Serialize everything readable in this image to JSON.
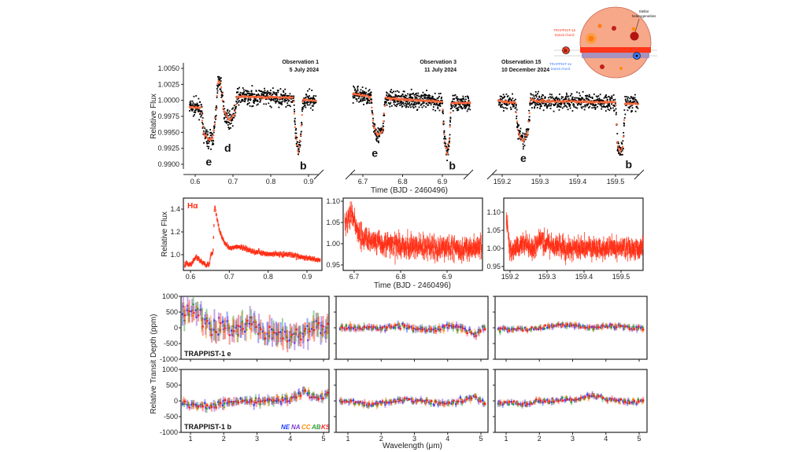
{
  "colors": {
    "model": "#ff6a3d",
    "scatter": "#000000",
    "halpha": "#ff2a10"
  },
  "chart_data": [
    {
      "type": "scatter",
      "id": "white-light-curves",
      "ylabel": "Relative Flux",
      "xlabel": "Time (BJD - 2460496)",
      "yticks": [
        "1.0050",
        "1.0025",
        "1.0000",
        "0.9975",
        "0.9950",
        "0.9925",
        "0.9900"
      ],
      "ylim": [
        0.9895,
        1.0055
      ],
      "panels": [
        {
          "title": "Observation 1",
          "date": "5 July 2024",
          "xticks": [
            "0.6",
            "0.7",
            "0.8",
            "0.9"
          ],
          "xlim": [
            0.585,
            0.92
          ],
          "labels": [
            {
              "text": "e",
              "x": 0.636,
              "y": 0.9904
            },
            {
              "text": "d",
              "x": 0.686,
              "y": 0.9926
            },
            {
              "text": "b",
              "x": 0.886,
              "y": 0.9898
            }
          ],
          "model": [
            [
              0.585,
              0.999
            ],
            [
              0.615,
              0.9988
            ],
            [
              0.622,
              0.995
            ],
            [
              0.635,
              0.9938
            ],
            [
              0.648,
              0.9942
            ],
            [
              0.655,
              0.998
            ],
            [
              0.66,
              1.0032
            ],
            [
              0.668,
              1.0025
            ],
            [
              0.675,
              0.9985
            ],
            [
              0.69,
              0.9968
            ],
            [
              0.705,
              0.998
            ],
            [
              0.71,
              1.0006
            ],
            [
              0.86,
              1.0004
            ],
            [
              0.865,
              0.995
            ],
            [
              0.873,
              0.9915
            ],
            [
              0.88,
              0.995
            ],
            [
              0.885,
              1.0001
            ],
            [
              0.92,
              0.9999
            ]
          ]
        },
        {
          "title": "Observation 3",
          "date": "11 July 2024",
          "xticks": [
            "6.7",
            "6.8",
            "6.9"
          ],
          "xlim": [
            6.675,
            6.97
          ],
          "labels": [
            {
              "text": "e",
              "x": 6.73,
              "y": 0.9918
            },
            {
              "text": "b",
              "x": 6.925,
              "y": 0.9898
            }
          ],
          "model": [
            [
              6.675,
              1.0011
            ],
            [
              6.72,
              1.0005
            ],
            [
              6.727,
              0.996
            ],
            [
              6.737,
              0.9945
            ],
            [
              6.75,
              0.9952
            ],
            [
              6.757,
              1.0005
            ],
            [
              6.76,
              1.0003
            ],
            [
              6.9,
              0.9998
            ],
            [
              6.905,
              0.994
            ],
            [
              6.912,
              0.9915
            ],
            [
              6.918,
              0.994
            ],
            [
              6.922,
              0.9996
            ],
            [
              6.97,
              0.9996
            ]
          ]
        },
        {
          "title": "Observation 15",
          "date": "10 December 2024",
          "xticks": [
            "159.2",
            "159.3",
            "159.4",
            "159.5"
          ],
          "xlim": [
            159.19,
            159.56
          ],
          "labels": [
            {
              "text": "e",
              "x": 159.256,
              "y": 0.991
            },
            {
              "text": "b",
              "x": 159.535,
              "y": 0.99
            }
          ],
          "model": [
            [
              159.19,
              0.9999
            ],
            [
              159.235,
              0.9996
            ],
            [
              159.242,
              0.995
            ],
            [
              159.255,
              0.9935
            ],
            [
              159.268,
              0.995
            ],
            [
              159.275,
              1.0003
            ],
            [
              159.285,
              0.9999
            ],
            [
              159.5,
              0.9997
            ],
            [
              159.505,
              0.993
            ],
            [
              159.513,
              0.9918
            ],
            [
              159.52,
              0.993
            ],
            [
              159.525,
              0.9995
            ],
            [
              159.56,
              0.9995
            ]
          ]
        }
      ]
    },
    {
      "type": "line",
      "id": "halpha-light-curves",
      "series_label": "Hα",
      "ylabel": "Relative Flux",
      "xlabel": "Time (BJD - 2460496)",
      "panels": [
        {
          "xticks": [
            "0.6",
            "0.7",
            "0.8",
            "0.9"
          ],
          "yticks": [
            "1.4",
            "1.2",
            "1.0"
          ],
          "xlim": [
            0.585,
            0.935
          ],
          "values": [
            [
              0.585,
              0.92
            ],
            [
              0.6,
              0.91
            ],
            [
              0.615,
              0.98
            ],
            [
              0.63,
              0.93
            ],
            [
              0.648,
              0.91
            ],
            [
              0.652,
              1.0
            ],
            [
              0.658,
              1.01
            ],
            [
              0.662,
              1.44
            ],
            [
              0.675,
              1.2
            ],
            [
              0.69,
              1.1
            ],
            [
              0.7,
              1.06
            ],
            [
              0.73,
              1.07
            ],
            [
              0.76,
              1.03
            ],
            [
              0.8,
              1.01
            ],
            [
              0.85,
              1.0
            ],
            [
              0.9,
              0.97
            ],
            [
              0.935,
              0.95
            ]
          ]
        },
        {
          "xticks": [
            "6.7",
            "6.8",
            "6.9"
          ],
          "yticks": [
            "1.10",
            "1.05",
            "1.00",
            "0.95"
          ],
          "xlim": [
            6.68,
            6.975
          ],
          "values": [
            [
              6.68,
              1.045
            ],
            [
              6.695,
              1.07
            ],
            [
              6.71,
              1.02
            ],
            [
              6.75,
              1.005
            ],
            [
              6.8,
              0.995
            ],
            [
              6.9,
              0.99
            ],
            [
              6.975,
              0.99
            ]
          ]
        },
        {
          "xticks": [
            "159.2",
            "159.3",
            "159.4",
            "159.5"
          ],
          "yticks": [
            "1.10",
            "1.05",
            "1.00",
            "0.95"
          ],
          "xlim": [
            159.19,
            159.56
          ],
          "values": [
            [
              159.19,
              1.09
            ],
            [
              159.2,
              0.99
            ],
            [
              159.24,
              1.015
            ],
            [
              159.26,
              0.995
            ],
            [
              159.28,
              1.02
            ],
            [
              159.35,
              1.0
            ],
            [
              159.56,
              1.0
            ]
          ]
        }
      ]
    },
    {
      "type": "scatter",
      "id": "transmission-spectra",
      "ylabel": "Relative Transit Depth (ppm)",
      "xlabel": "Wavelength (μm)",
      "yticks": [
        "1000",
        "500",
        "0",
        "-500",
        "-1000"
      ],
      "ylim": [
        -1000,
        1000
      ],
      "xticks": [
        "1",
        "2",
        "3",
        "4",
        "5"
      ],
      "xlim": [
        0.72,
        5.18
      ],
      "legend": [
        {
          "name": "NE",
          "color": "#1f3dff"
        },
        {
          "name": "NA",
          "color": "#7b3fd6"
        },
        {
          "name": "CC",
          "color": "#ff8a00"
        },
        {
          "name": "AB",
          "color": "#2e9e3a"
        },
        {
          "name": "KS",
          "color": "#ff1e1e"
        }
      ],
      "legend_position": "bottom-right",
      "anchor_wavelengths": [
        0.8,
        1.2,
        1.6,
        2.0,
        2.4,
        2.8,
        3.2,
        3.6,
        4.0,
        4.4,
        4.8,
        5.1
      ],
      "rows": [
        {
          "planet": "TRAPPIST-1 e",
          "panels": [
            {
              "mean": [
                500,
                550,
                0,
                100,
                0,
                200,
                -100,
                -200,
                -300,
                -200,
                100,
                -100
              ],
              "error": 300
            },
            {
              "mean": [
                0,
                0,
                0,
                0,
                50,
                50,
                -50,
                -50,
                50,
                0,
                -200,
                0
              ],
              "error": 100
            },
            {
              "mean": [
                -50,
                -50,
                -50,
                0,
                50,
                100,
                50,
                0,
                50,
                50,
                0,
                0
              ],
              "error": 80
            }
          ]
        },
        {
          "planet": "TRAPPIST-1 b",
          "panels": [
            {
              "mean": [
                -50,
                -150,
                -150,
                -100,
                0,
                0,
                0,
                50,
                50,
                300,
                100,
                200
              ],
              "error": 120
            },
            {
              "mean": [
                0,
                -50,
                -150,
                -50,
                0,
                50,
                0,
                -50,
                -50,
                0,
                150,
                -100
              ],
              "error": 90
            },
            {
              "mean": [
                -50,
                -50,
                -100,
                0,
                0,
                50,
                50,
                200,
                50,
                0,
                -50,
                0
              ],
              "error": 80
            }
          ]
        }
      ]
    }
  ],
  "inset": {
    "stellar_label": [
      "Stellar",
      "heterogeneities"
    ],
    "b_chord": [
      "TRAPPIST-1b",
      "transit chord"
    ],
    "e_chord": [
      "TRAPPIST-1e",
      "transit chord"
    ],
    "b_color": "#ff3b1f",
    "e_color": "#3b7bff",
    "star_color": "#f7a889"
  }
}
